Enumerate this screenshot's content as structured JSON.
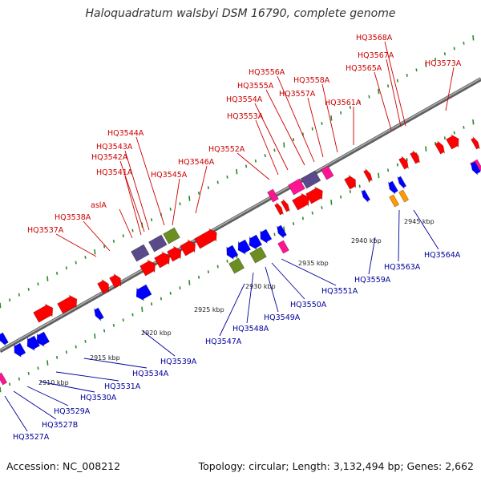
{
  "title": "Haloquadratum walsbyi DSM 16790, complete genome",
  "footer": {
    "accession": "Accession: NC_008212",
    "summary": "Topology: circular; Length: 3,132,494 bp; Genes: 2,662"
  },
  "colors": {
    "forward_label": "#cc0000",
    "reverse_label": "#000099",
    "backbone": "#808080",
    "tick": "#2a8a2a",
    "gene_red": "#ff0000",
    "gene_blue": "#0000ff",
    "gene_purple": "#5a4a8a",
    "gene_green": "#6b8e23",
    "gene_magenta": "#ff1493",
    "gene_orange": "#ff9900"
  },
  "scale_labels": [
    "2910 kbp",
    "2915 kbp",
    "2920 kbp",
    "2925 kbp",
    "2930 kbp",
    "2935 kbp",
    "2940 kbp",
    "2945 kbp"
  ],
  "forward_gene_labels": [
    "HQ3537A",
    "HQ3538A",
    "aslA",
    "HQ3541A",
    "HQ3542A",
    "HQ3543A",
    "HQ3544A",
    "HQ3545A",
    "HQ3546A",
    "HQ3552A",
    "HQ3553A",
    "HQ3554A",
    "HQ3555A",
    "HQ3556A",
    "HQ3557A",
    "HQ3558A",
    "HQ3561A",
    "HQ3565A",
    "HQ3567A",
    "HQ3568A",
    "HQ3573A"
  ],
  "reverse_gene_labels": [
    "HQ3527A",
    "HQ3527B",
    "HQ3529A",
    "HQ3530A",
    "HQ3531A",
    "HQ3534A",
    "HQ3539A",
    "HQ3547A",
    "HQ3548A",
    "HQ3549A",
    "HQ3550A",
    "HQ3551A",
    "HQ3559A",
    "HQ3563A",
    "HQ3564A"
  ]
}
